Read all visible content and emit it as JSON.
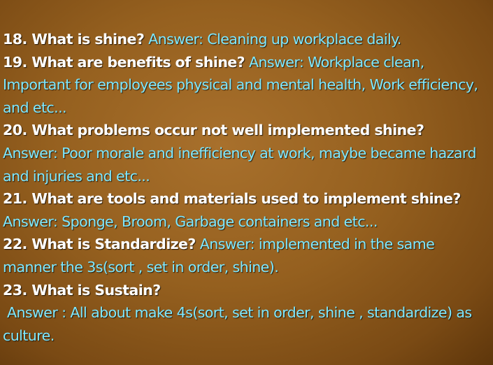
{
  "colors": {
    "background": "#95601f",
    "question": "#ffffff",
    "answer": "#7ee8ff"
  },
  "items": [
    {
      "question": "18. What is shine?",
      "answer": "Answer: Cleaning up workplace daily."
    },
    {
      "question": "19. What are benefits of shine?",
      "answer": "Answer: Workplace clean, Important for employees physical and mental health, Work efficiency, and etc..."
    },
    {
      "question": "20. What problems occur not well implemented shine?",
      "answer": "Answer: Poor morale and inefficiency at work, maybe became hazard and injuries and etc..."
    },
    {
      "question": "21. What are tools and materials used to implement shine?",
      "answer": "Answer: Sponge, Broom, Garbage containers and etc..."
    },
    {
      "question": "22. What is Standardize?",
      "answer": "Answer:  implemented in the same manner the 3s(sort , set in order, shine)."
    },
    {
      "question": "23. What is Sustain?",
      "answer": "Answer : All about make  4s(sort, set in order, shine , standardize) as culture."
    }
  ]
}
